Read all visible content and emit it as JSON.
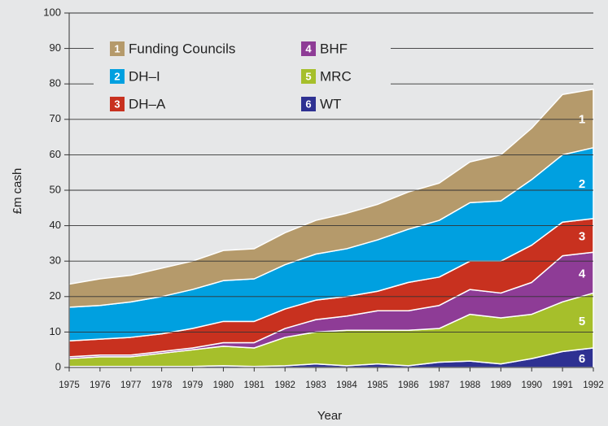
{
  "chart_data": {
    "type": "stacked_area",
    "y_label": "£m cash",
    "x_label": "Year",
    "x": [
      1975,
      1976,
      1977,
      1978,
      1979,
      1980,
      1981,
      1982,
      1983,
      1984,
      1985,
      1986,
      1987,
      1988,
      1989,
      1990,
      1991,
      1992
    ],
    "xlim": [
      1975,
      1992
    ],
    "xticks": [
      1975,
      1976,
      1977,
      1978,
      1979,
      1980,
      1981,
      1982,
      1983,
      1984,
      1985,
      1986,
      1987,
      1988,
      1989,
      1990,
      1991,
      1992
    ],
    "ylim": [
      0,
      100
    ],
    "yticks": [
      0,
      10,
      20,
      30,
      40,
      50,
      60,
      70,
      80,
      90,
      100
    ],
    "grid": true,
    "series": [
      {
        "number": "1",
        "name": "Funding Councils",
        "color": "#b59a6b",
        "values": [
          6.5,
          7.5,
          7.5,
          8,
          8,
          8.5,
          8.5,
          9,
          9.5,
          10,
          10,
          10.5,
          10.5,
          11.5,
          13,
          14.5,
          17,
          16.5
        ]
      },
      {
        "number": "2",
        "name": "DH–I",
        "color": "#00a0e0",
        "values": [
          9.5,
          9.5,
          10,
          10.5,
          11,
          11.5,
          12,
          12.5,
          13,
          13.5,
          14.5,
          15,
          16,
          16.5,
          17,
          18.5,
          19,
          20
        ]
      },
      {
        "number": "3",
        "name": "DH–A",
        "color": "#c8311f",
        "values": [
          4.5,
          4.5,
          5,
          5,
          5.5,
          6,
          6,
          5.5,
          5.5,
          5.5,
          5.5,
          8,
          8,
          8,
          9,
          10.5,
          9.5,
          9.5
        ]
      },
      {
        "number": "4",
        "name": "BHF",
        "color": "#8e3c96",
        "values": [
          0.5,
          0.5,
          0.5,
          0.5,
          0.5,
          1,
          1.5,
          2.5,
          3.5,
          4,
          5.5,
          5.5,
          6.5,
          7,
          7,
          9,
          13,
          11.5
        ]
      },
      {
        "number": "5",
        "name": "MRC",
        "color": "#a6bf2b",
        "values": [
          2.2,
          2.7,
          2.7,
          3.7,
          4.7,
          5.5,
          5.2,
          8,
          9,
          10,
          9.5,
          10,
          9.5,
          13.2,
          13,
          12.5,
          14,
          15.5
        ]
      },
      {
        "number": "6",
        "name": "WT",
        "color": "#2e3192",
        "values": [
          0.3,
          0.3,
          0.3,
          0.3,
          0.3,
          0.5,
          0.3,
          0.5,
          1,
          0.5,
          1,
          0.5,
          1.5,
          1.8,
          1,
          2.5,
          4.5,
          5.5
        ]
      }
    ]
  }
}
